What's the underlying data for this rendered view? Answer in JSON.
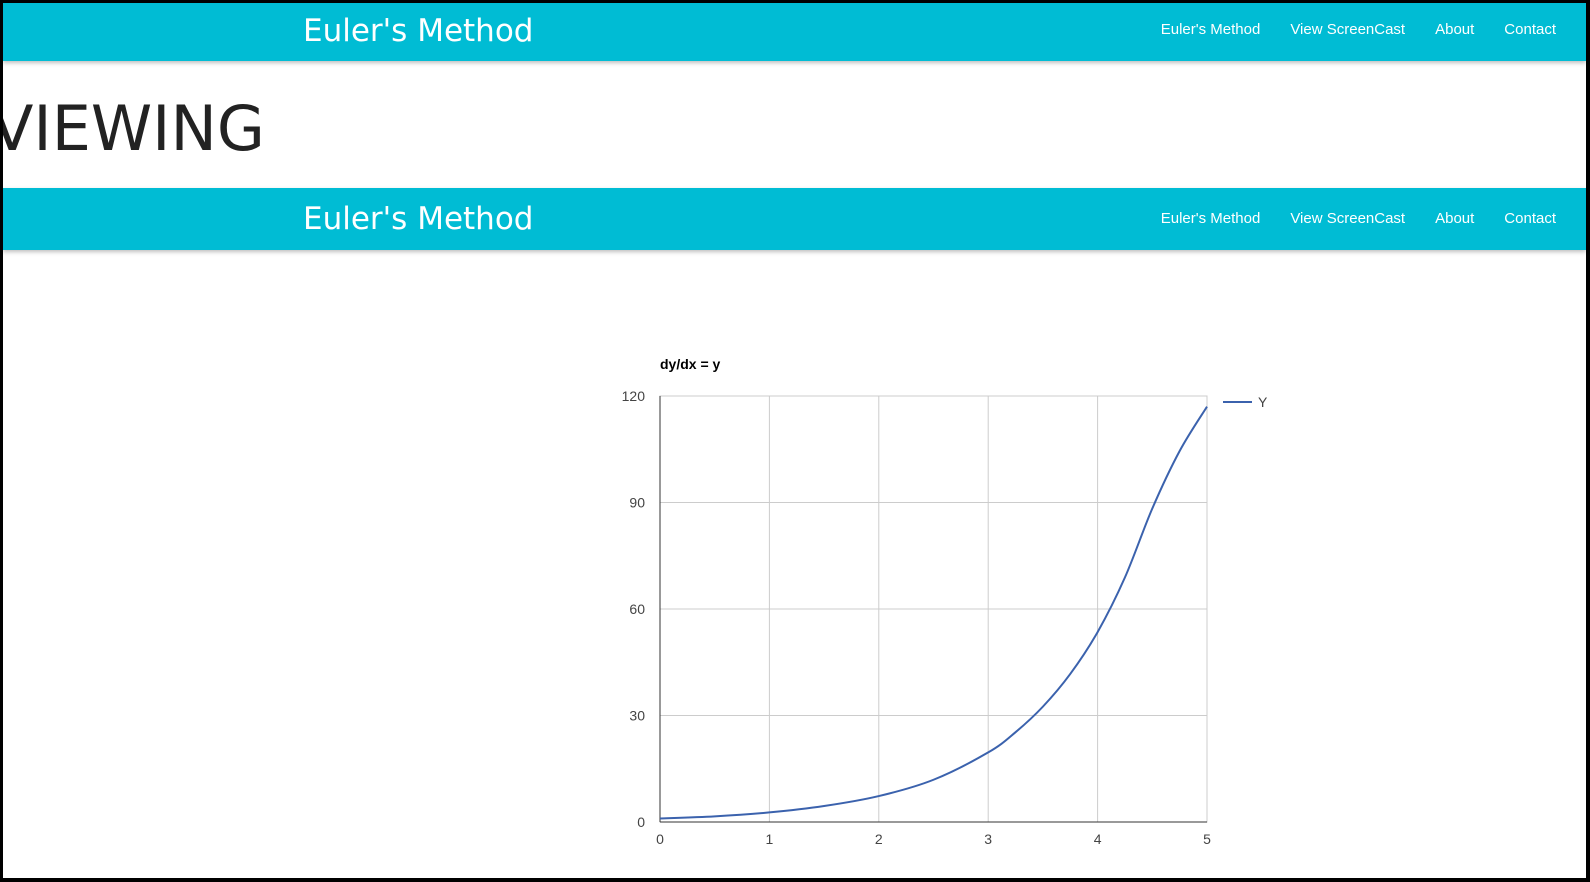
{
  "navbar_top": {
    "brand": "Euler's Method",
    "links": [
      "Euler's Method",
      "View ScreenCast",
      "About",
      "Contact"
    ]
  },
  "heading": "VIEWING",
  "navbar_second": {
    "brand": "Euler's Method",
    "links": [
      "Euler's Method",
      "View ScreenCast",
      "About",
      "Contact"
    ]
  },
  "colors": {
    "navbar": "#00bcd4",
    "series": "#3b62ad",
    "grid": "#cccccc"
  },
  "chart_data": {
    "type": "line",
    "title": "dy/dx = y",
    "xlabel": "",
    "ylabel": "",
    "xlim": [
      0,
      5
    ],
    "ylim": [
      0,
      120
    ],
    "x_ticks": [
      "0",
      "1",
      "2",
      "3",
      "4",
      "5"
    ],
    "y_ticks": [
      "0",
      "30",
      "60",
      "90",
      "120"
    ],
    "grid": true,
    "legend_position": "right",
    "series": [
      {
        "name": "Y",
        "x": [
          0,
          0.5,
          1,
          1.5,
          2,
          2.5,
          3,
          3.25,
          3.5,
          3.75,
          4,
          4.25,
          4.5,
          4.75,
          5
        ],
        "y": [
          1,
          1.6,
          2.7,
          4.5,
          7.3,
          11.9,
          19.6,
          25.3,
          32.5,
          41.7,
          53.5,
          68.9,
          88.3,
          104.5,
          117
        ]
      }
    ]
  }
}
